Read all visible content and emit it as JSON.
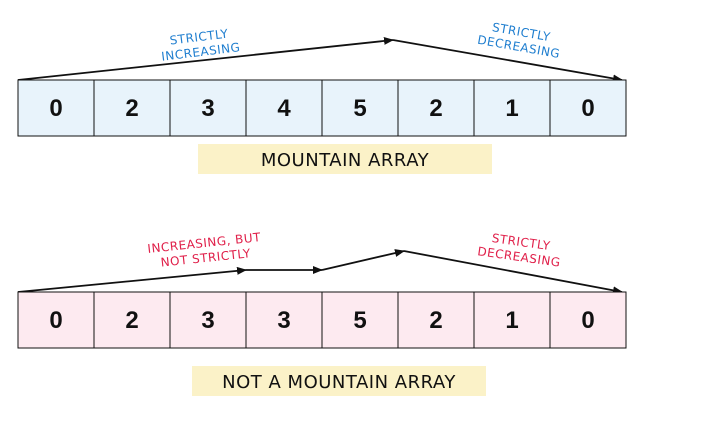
{
  "mountain": {
    "cells": [
      "0",
      "2",
      "3",
      "4",
      "5",
      "2",
      "1",
      "0"
    ],
    "up_label": [
      "STRICTLY",
      "INCREASING"
    ],
    "down_label": [
      "STRICTLY",
      "DECREASING"
    ],
    "caption": "MOUNTAIN ARRAY",
    "cell_fill": "#e8f3fb",
    "caption_fill": "#fbf2c8",
    "label_color": "#1f7ecf"
  },
  "not_mountain": {
    "cells": [
      "0",
      "2",
      "3",
      "3",
      "5",
      "2",
      "1",
      "0"
    ],
    "up_label": [
      "INCREASING, BUT",
      "NOT STRICTLY"
    ],
    "down_label": [
      "STRICTLY",
      "DECREASING"
    ],
    "caption": "NOT A MOUNTAIN ARRAY",
    "cell_fill": "#fdeaf0",
    "caption_fill": "#fbf2c8",
    "label_color": "#e0204a"
  }
}
